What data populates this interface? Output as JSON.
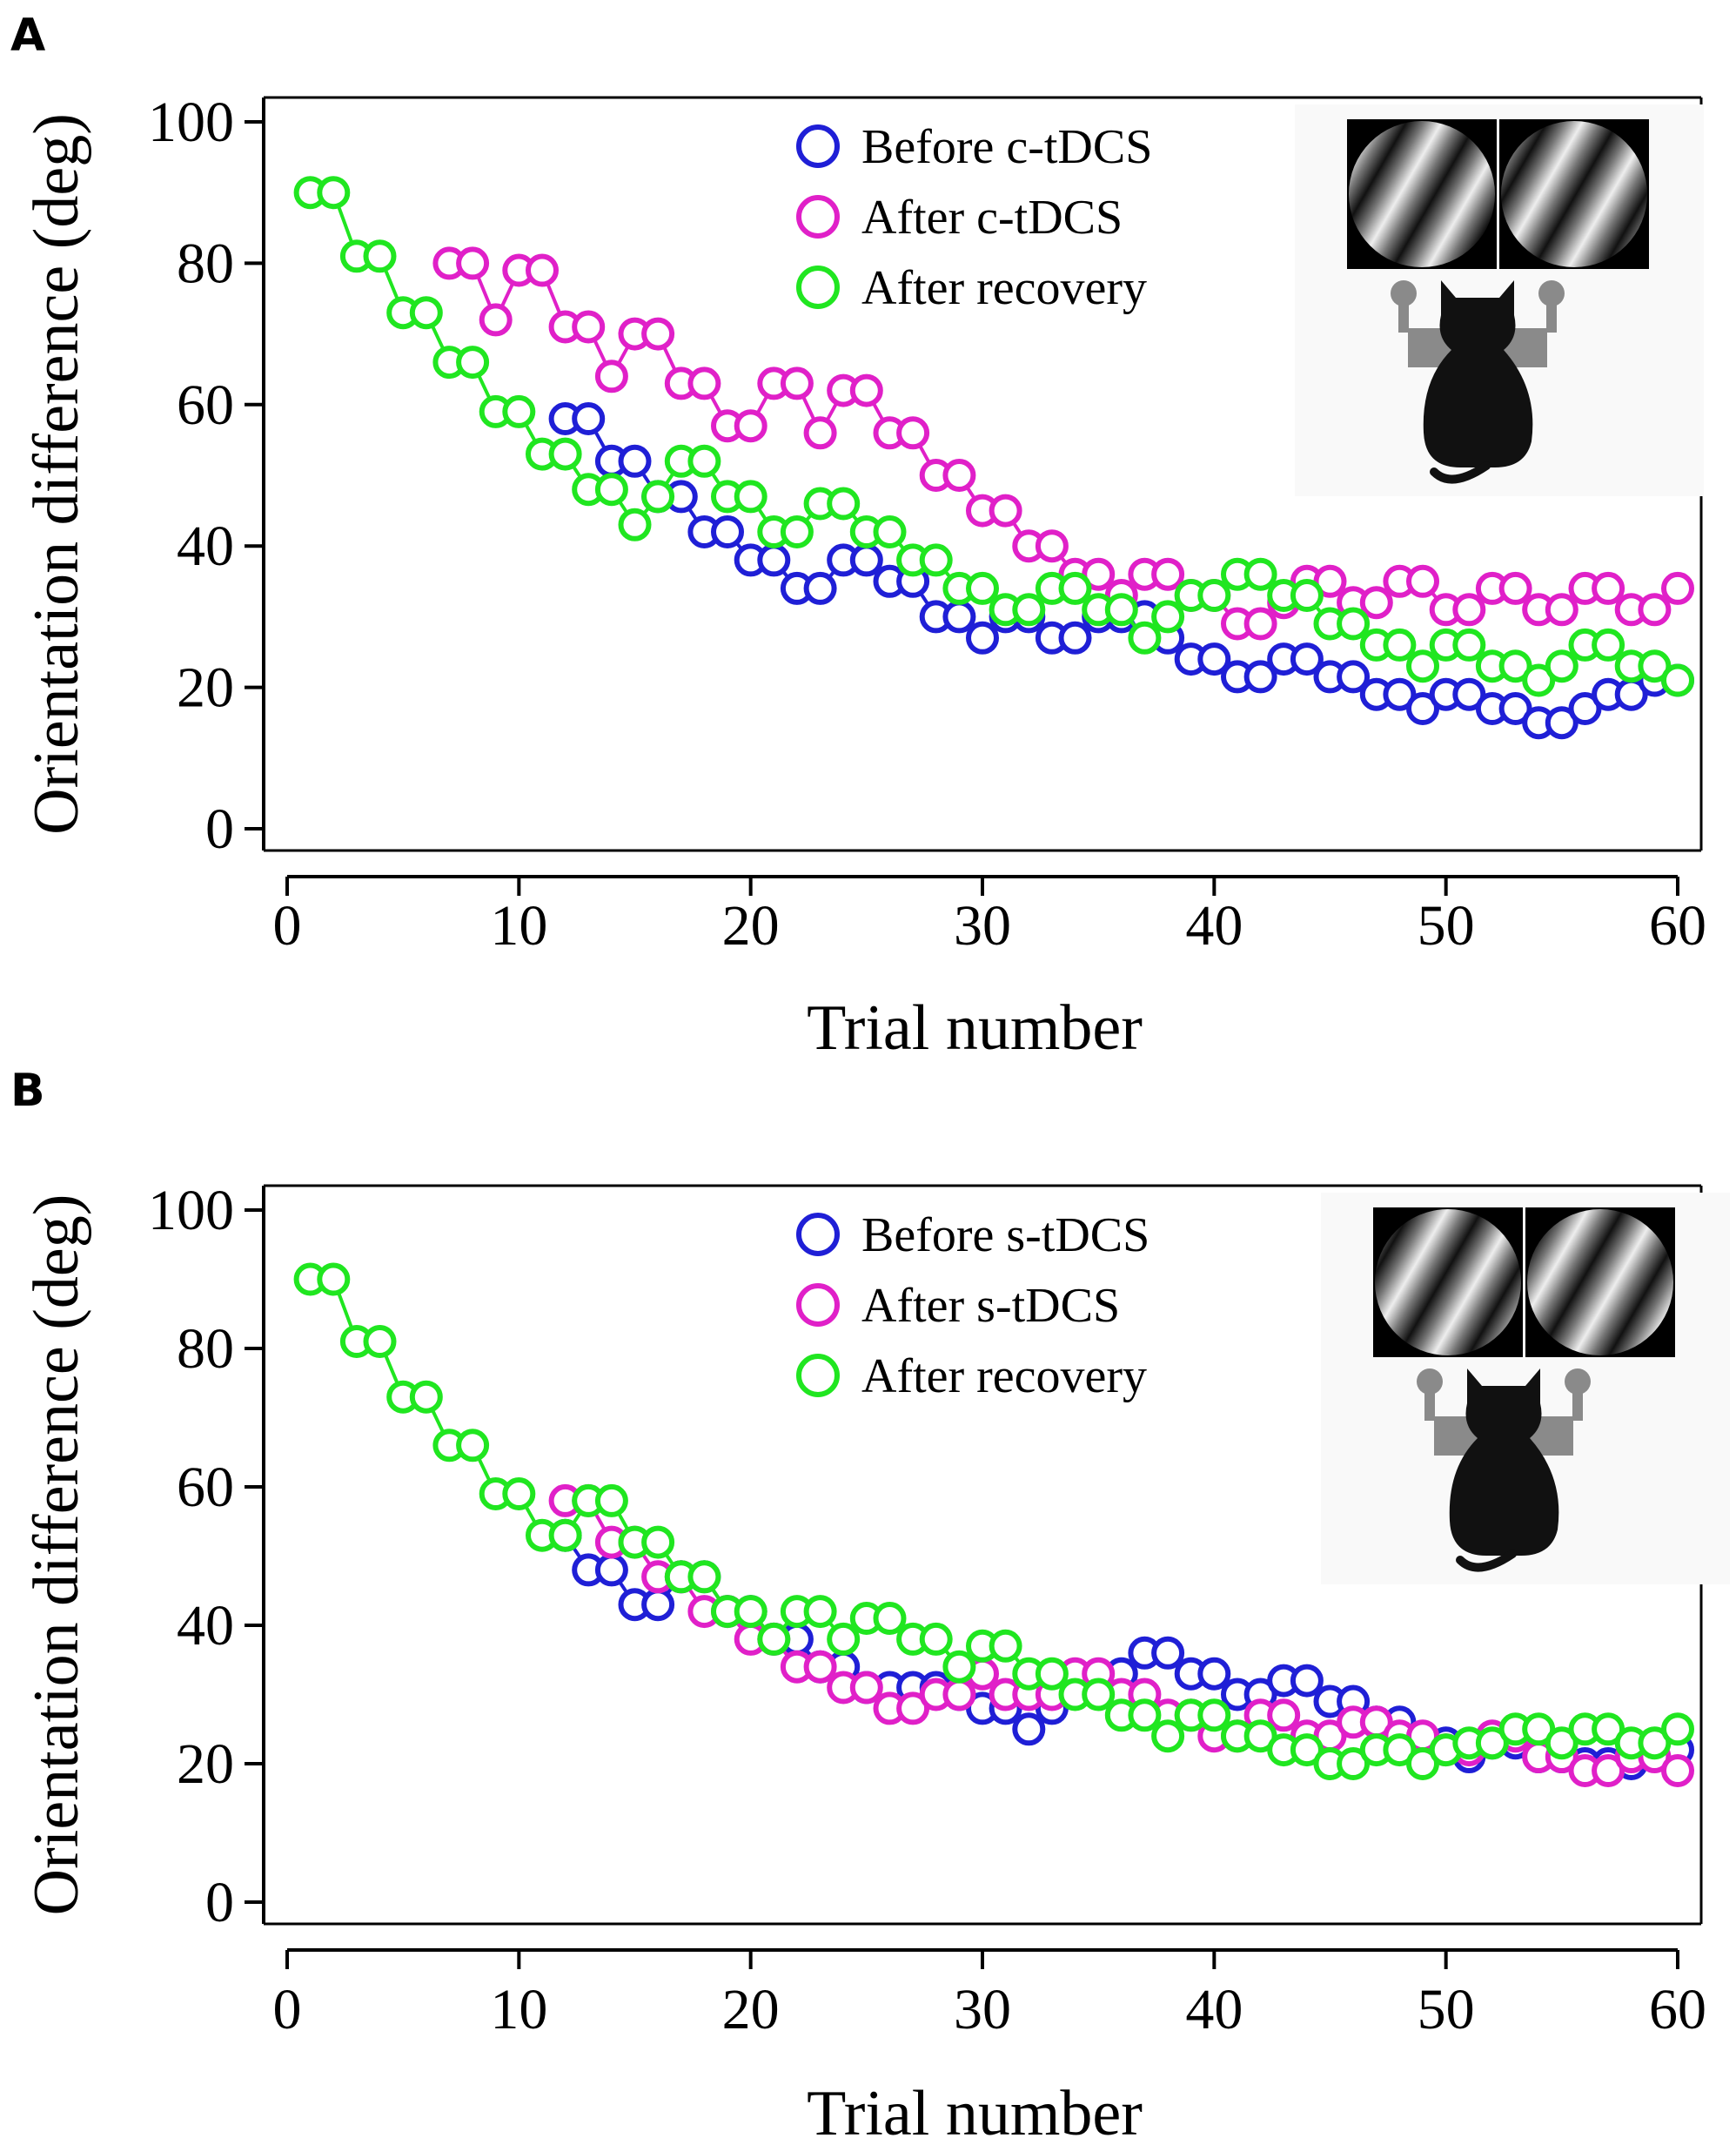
{
  "figure": {
    "panels": [
      "A",
      "B"
    ]
  },
  "chart_data": [
    {
      "panel": "A",
      "type": "line",
      "marker": "open-circle",
      "xlabel": "Trial number",
      "ylabel": "Orientation difference (deg)",
      "xlim": [
        0,
        60
      ],
      "ylim": [
        0,
        100
      ],
      "xticks": [
        0,
        10,
        20,
        30,
        40,
        50,
        60
      ],
      "yticks": [
        0,
        20,
        40,
        60,
        80,
        100
      ],
      "grid": false,
      "legend_position": "top-center",
      "inset": "two oriented gratings above a cat at a two-lever response box",
      "series": [
        {
          "name": "Before c-tDCS",
          "color": "#1f1fd6",
          "x": [
            12,
            13,
            14,
            15,
            16,
            17,
            18,
            19,
            20,
            21,
            22,
            23,
            24,
            25,
            26,
            27,
            28,
            29,
            30,
            31,
            32,
            33,
            34,
            35,
            36,
            37,
            38,
            39,
            40,
            41,
            42,
            43,
            44,
            45,
            46,
            47,
            48,
            49,
            50,
            51,
            52,
            53,
            54,
            55,
            56,
            57,
            58,
            59,
            60
          ],
          "y": [
            58,
            58,
            52,
            52,
            47,
            47,
            42,
            42,
            38,
            38,
            34,
            34,
            38,
            38,
            35,
            35,
            30,
            30,
            27,
            30,
            30,
            27,
            27,
            30,
            30,
            30,
            27,
            24,
            24,
            21.5,
            21.5,
            24,
            24,
            21.5,
            21.5,
            19,
            19,
            17,
            19,
            19,
            17,
            17,
            15,
            15,
            17,
            19,
            19,
            21,
            21
          ]
        },
        {
          "name": "After c-tDCS",
          "color": "#e020c8",
          "x": [
            7,
            8,
            9,
            10,
            11,
            12,
            13,
            14,
            15,
            16,
            17,
            18,
            19,
            20,
            21,
            22,
            23,
            24,
            25,
            26,
            27,
            28,
            29,
            30,
            31,
            32,
            33,
            34,
            35,
            36,
            37,
            38,
            39,
            40,
            41,
            42,
            43,
            44,
            45,
            46,
            47,
            48,
            49,
            50,
            51,
            52,
            53,
            54,
            55,
            56,
            57,
            58,
            59,
            60
          ],
          "y": [
            80,
            80,
            72,
            79,
            79,
            71,
            71,
            64,
            70,
            70,
            63,
            63,
            57,
            57,
            63,
            63,
            56,
            62,
            62,
            56,
            56,
            50,
            50,
            45,
            45,
            40,
            40,
            36,
            36,
            33,
            36,
            36,
            33,
            33,
            29,
            29,
            32,
            35,
            35,
            32,
            32,
            35,
            35,
            31,
            31,
            34,
            34,
            31,
            31,
            34,
            34,
            31,
            31,
            34
          ]
        },
        {
          "name": "After recovery",
          "color": "#20e620",
          "x": [
            1,
            2,
            3,
            4,
            5,
            6,
            7,
            8,
            9,
            10,
            11,
            12,
            13,
            14,
            15,
            16,
            17,
            18,
            19,
            20,
            21,
            22,
            23,
            24,
            25,
            26,
            27,
            28,
            29,
            30,
            31,
            32,
            33,
            34,
            35,
            36,
            37,
            38,
            39,
            40,
            41,
            42,
            43,
            44,
            45,
            46,
            47,
            48,
            49,
            50,
            51,
            52,
            53,
            54,
            55,
            56,
            57,
            58,
            59,
            60
          ],
          "y": [
            90,
            90,
            81,
            81,
            73,
            73,
            66,
            66,
            59,
            59,
            53,
            53,
            48,
            48,
            43,
            47,
            52,
            52,
            47,
            47,
            42,
            42,
            46,
            46,
            42,
            42,
            38,
            38,
            34,
            34,
            31,
            31,
            34,
            34,
            31,
            31,
            27,
            30,
            33,
            33,
            36,
            36,
            33,
            33,
            29,
            29,
            26,
            26,
            23,
            26,
            26,
            23,
            23,
            21,
            23,
            26,
            26,
            23,
            23,
            21
          ]
        }
      ]
    },
    {
      "panel": "B",
      "type": "line",
      "marker": "open-circle",
      "xlabel": "Trial number",
      "ylabel": "Orientation difference (deg)",
      "xlim": [
        0,
        60
      ],
      "ylim": [
        0,
        100
      ],
      "xticks": [
        0,
        10,
        20,
        30,
        40,
        50,
        60
      ],
      "yticks": [
        0,
        20,
        40,
        60,
        80,
        100
      ],
      "grid": false,
      "legend_position": "top-center",
      "inset": "two oriented gratings above a cat at a two-lever response box",
      "series": [
        {
          "name": "Before s-tDCS",
          "color": "#1f1fd6",
          "x": [
            12,
            13,
            14,
            15,
            16,
            17,
            18,
            19,
            20,
            21,
            22,
            23,
            24,
            25,
            26,
            27,
            28,
            29,
            30,
            31,
            32,
            33,
            34,
            35,
            36,
            37,
            38,
            39,
            40,
            41,
            42,
            43,
            44,
            45,
            46,
            47,
            48,
            49,
            50,
            51,
            52,
            53,
            54,
            55,
            56,
            57,
            58,
            59,
            60
          ],
          "y": [
            53,
            48,
            48,
            43,
            43,
            47,
            47,
            42,
            42,
            38,
            38,
            34,
            34,
            31,
            31,
            31,
            31,
            30,
            28,
            28,
            25,
            28,
            31,
            31,
            33,
            36,
            36,
            33,
            33,
            30,
            30,
            32,
            32,
            29,
            29,
            26,
            26,
            23,
            23,
            21,
            23,
            23,
            21,
            21,
            20,
            20,
            20,
            22,
            22
          ]
        },
        {
          "name": "After s-tDCS",
          "color": "#e020c8",
          "x": [
            12,
            13,
            14,
            15,
            16,
            17,
            18,
            19,
            20,
            21,
            22,
            23,
            24,
            25,
            26,
            27,
            28,
            29,
            30,
            31,
            32,
            33,
            34,
            35,
            36,
            37,
            38,
            39,
            40,
            41,
            42,
            43,
            44,
            45,
            46,
            47,
            48,
            49,
            50,
            51,
            52,
            53,
            54,
            55,
            56,
            57,
            58,
            59,
            60
          ],
          "y": [
            58,
            58,
            52,
            52,
            47,
            47,
            42,
            42,
            38,
            38,
            34,
            34,
            31,
            31,
            28,
            28,
            30,
            30,
            33,
            30,
            30,
            30,
            33,
            33,
            30,
            30,
            27,
            27,
            24,
            24,
            27,
            27,
            24,
            24,
            26,
            26,
            24,
            24,
            22,
            22,
            24,
            24,
            21,
            21,
            19,
            19,
            21,
            21,
            19
          ]
        },
        {
          "name": "After recovery",
          "color": "#20e620",
          "x": [
            1,
            2,
            3,
            4,
            5,
            6,
            7,
            8,
            9,
            10,
            11,
            12,
            13,
            14,
            15,
            16,
            17,
            18,
            19,
            20,
            21,
            22,
            23,
            24,
            25,
            26,
            27,
            28,
            29,
            30,
            31,
            32,
            33,
            34,
            35,
            36,
            37,
            38,
            39,
            40,
            41,
            42,
            43,
            44,
            45,
            46,
            47,
            48,
            49,
            50,
            51,
            52,
            53,
            54,
            55,
            56,
            57,
            58,
            59,
            60
          ],
          "y": [
            90,
            90,
            81,
            81,
            73,
            73,
            66,
            66,
            59,
            59,
            53,
            53,
            58,
            58,
            52,
            52,
            47,
            47,
            42,
            42,
            38,
            42,
            42,
            38,
            41,
            41,
            38,
            38,
            34,
            37,
            37,
            33,
            33,
            30,
            30,
            27,
            27,
            24,
            27,
            27,
            24,
            24,
            22,
            22,
            20,
            20,
            22,
            22,
            20,
            22,
            23,
            23,
            25,
            25,
            23,
            25,
            25,
            23,
            23,
            25
          ]
        }
      ]
    }
  ]
}
